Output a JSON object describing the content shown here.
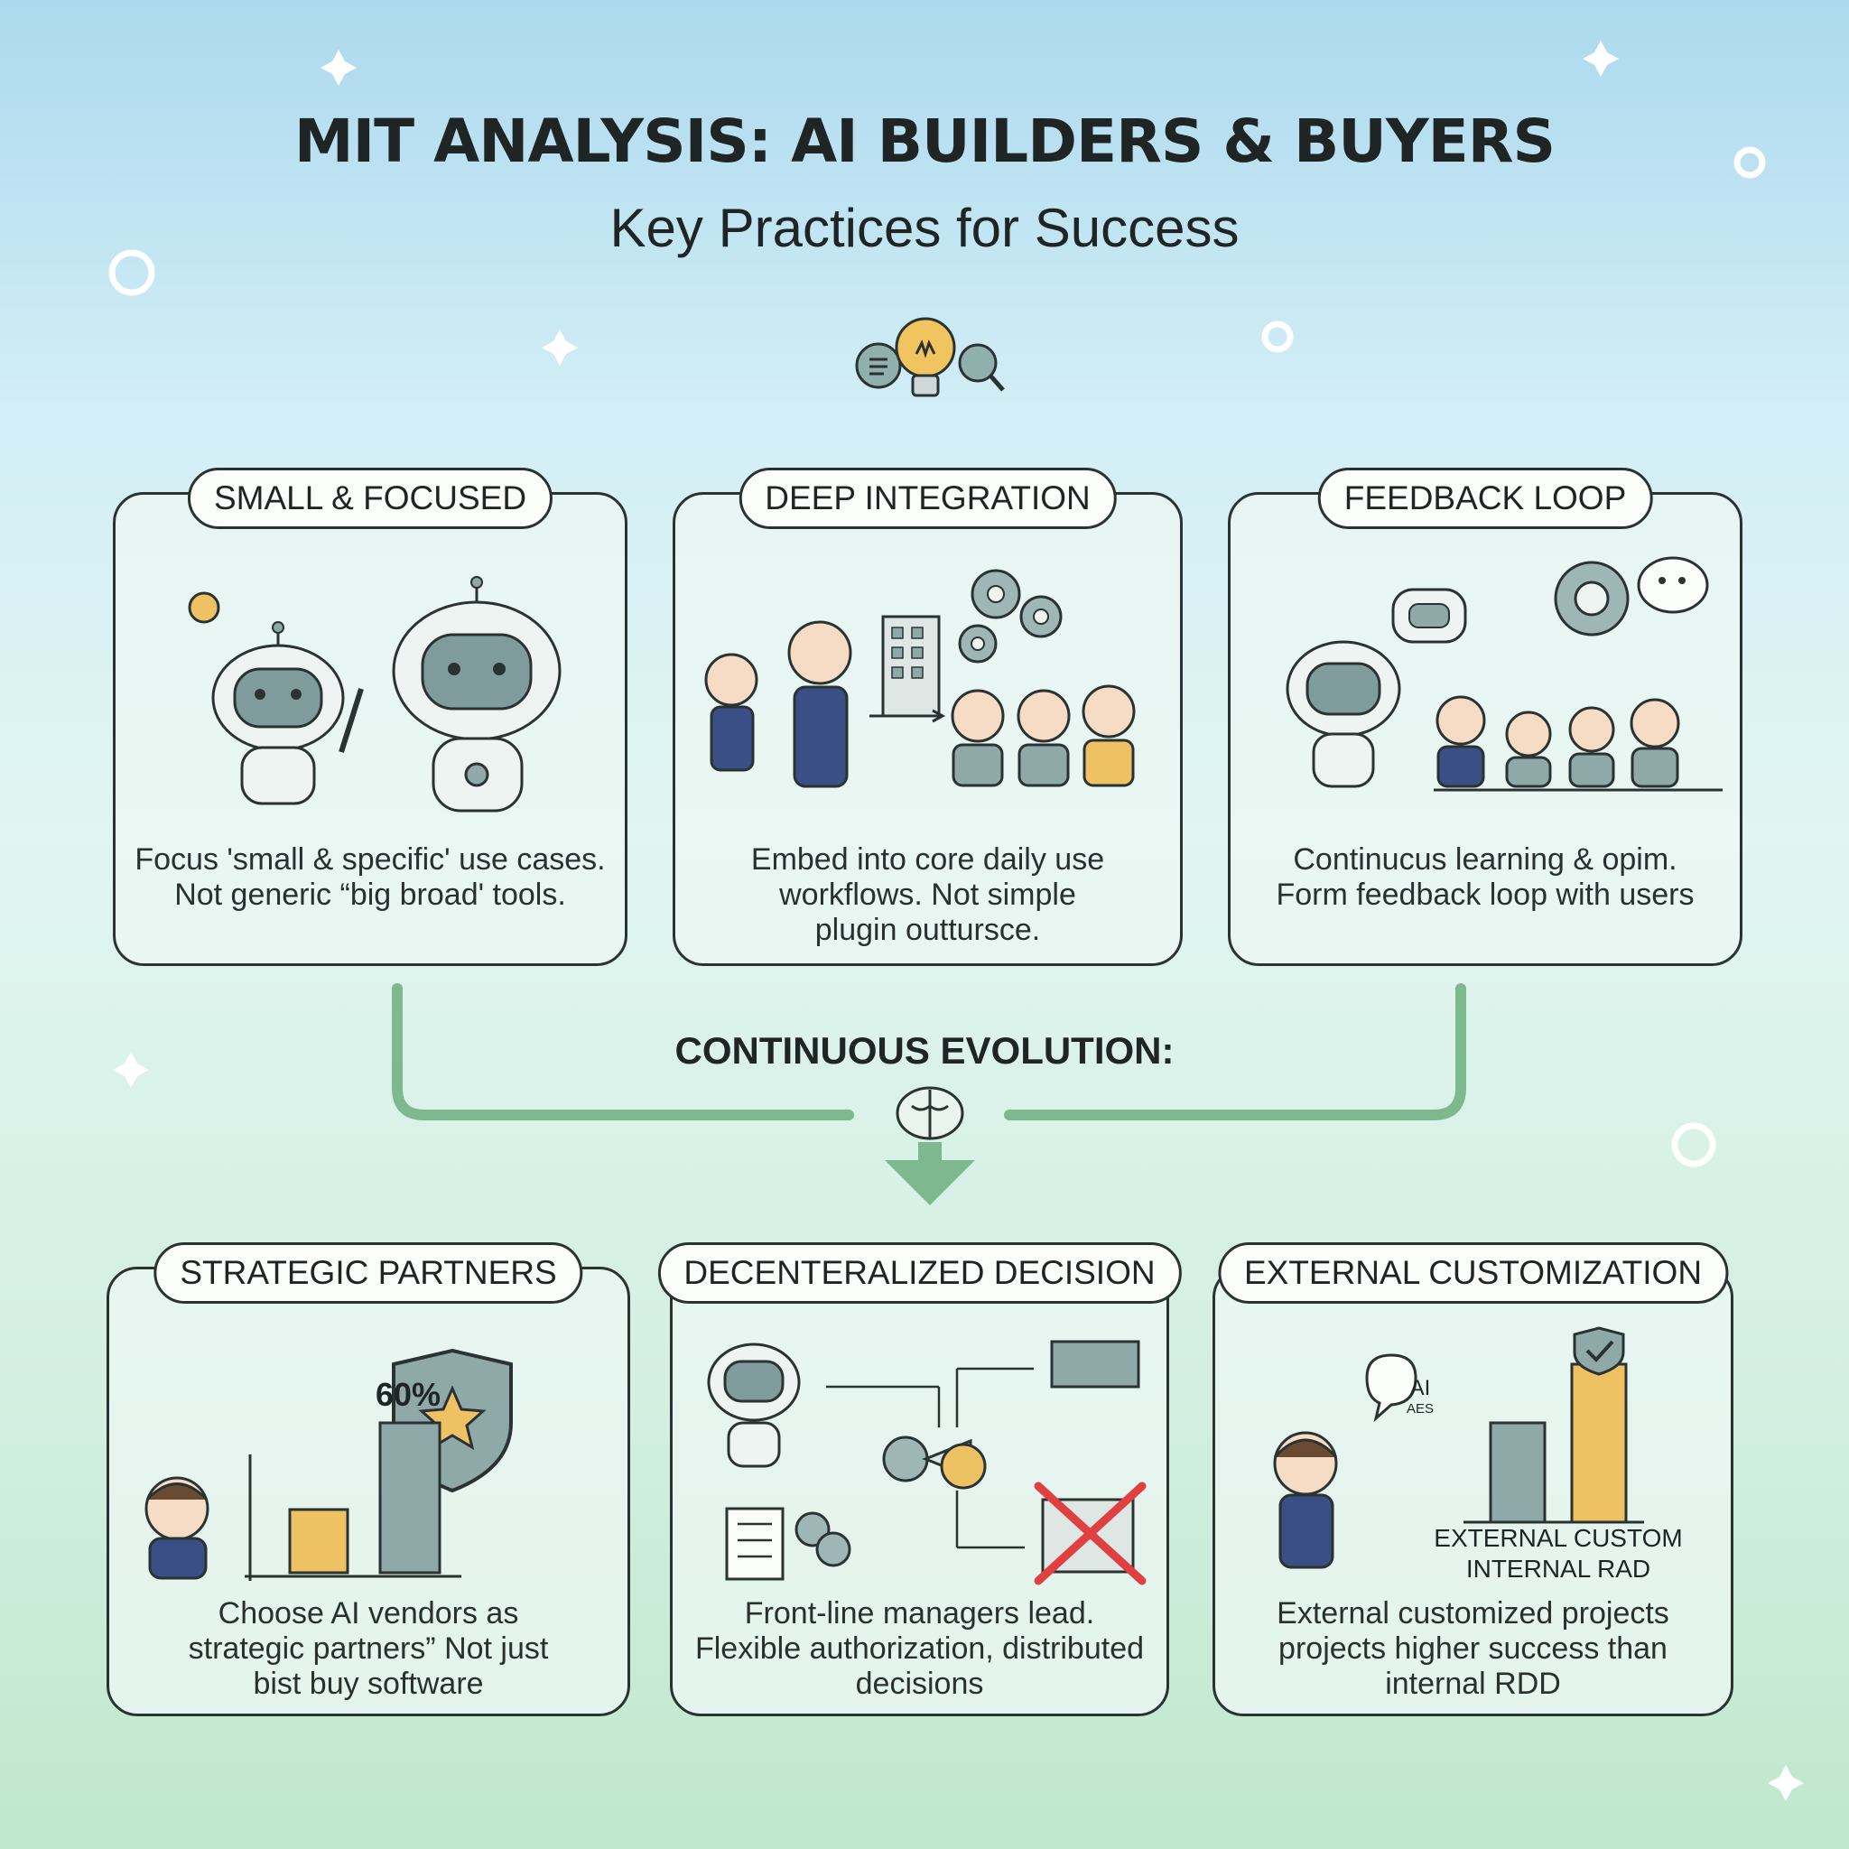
{
  "header": {
    "title": "MIT ANALYSIS: AI BUILDERS & BUYERS",
    "subtitle": "Key Practices for Success"
  },
  "top_cards": [
    {
      "title": "SMALL & FOCUSED",
      "lines": [
        "Focus 'small & specific' use cases.",
        "Not generic “big broad' tools."
      ]
    },
    {
      "title": "DEEP INTEGRATION",
      "lines": [
        "Embed into core daily use",
        "workflows. Not simple",
        "plugin outtursce."
      ]
    },
    {
      "title": "FEEDBACK LOOP",
      "lines": [
        "Continucus learning & opim.",
        "Form feedback loop with users"
      ]
    }
  ],
  "connector": {
    "label": "CONTINUOUS EVOLUTION:"
  },
  "bottom_cards": [
    {
      "title": "STRATEGIC PARTNERS",
      "lines": [
        "Choose AI vendors as",
        "strategic partners” Not just",
        "bist buy software"
      ],
      "chart_label": "60%"
    },
    {
      "title": "DECENTERALIZED DECISION",
      "lines": [
        "Front-line managers lead.",
        "Flexible authorization, distributed",
        "decisions"
      ]
    },
    {
      "title": "EXTERNAL CUSTOMIZATION",
      "lines": [
        "External customized projects",
        "projects higher success than",
        "internal RDD"
      ],
      "chart_labels": [
        "EXTERNAL CUSTOM",
        "INTERNAL RAD"
      ],
      "bubble": [
        "AI",
        "AES"
      ]
    }
  ],
  "colors": {
    "teal": "#8fa8a8",
    "gold": "#eec262",
    "green": "#7db88f",
    "navy": "#3a4f86",
    "red": "#e04040"
  }
}
